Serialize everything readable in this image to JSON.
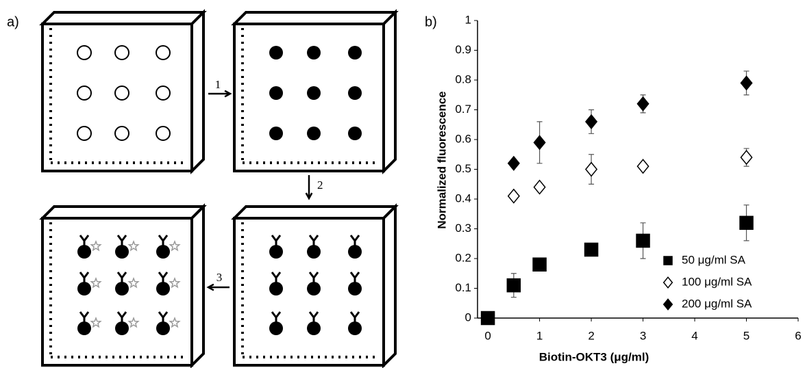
{
  "panel_labels": [
    "a)",
    "b)"
  ],
  "diagram": {
    "steps": [
      "1",
      "2",
      "3"
    ]
  },
  "chart_data": {
    "type": "scatter",
    "x_label": "Biotin-OKT3 (μg/ml)",
    "y_label": "Normalized fluorescence",
    "xlim": [
      -0.2,
      6
    ],
    "xticks": [
      0,
      1,
      2,
      3,
      4,
      5,
      6
    ],
    "ylim": [
      0,
      1
    ],
    "yticks": [
      0,
      0.1,
      0.2,
      0.3,
      0.4,
      0.5,
      0.6,
      0.7,
      0.8,
      0.9,
      1
    ],
    "grid": false,
    "legend": "lower right",
    "series": [
      {
        "name": "50 μg/ml SA",
        "color": "#000000",
        "marker": "square",
        "filled": true,
        "x": [
          0,
          0.5,
          1,
          2,
          3,
          5
        ],
        "values": [
          0,
          0.11,
          0.18,
          0.23,
          0.26,
          0.32
        ],
        "errors": [
          0,
          0.04,
          0.01,
          0.01,
          0.06,
          0.06
        ]
      },
      {
        "name": "100 μg/ml SA",
        "color": "#000000",
        "marker": "diamond",
        "filled": false,
        "x": [
          0.5,
          1,
          2,
          3,
          5
        ],
        "values": [
          0.41,
          0.44,
          0.5,
          0.51,
          0.54
        ],
        "errors": [
          0.01,
          0.01,
          0.05,
          0.01,
          0.03
        ]
      },
      {
        "name": "200 μg/ml SA",
        "color": "#000000",
        "marker": "diamond",
        "filled": true,
        "x": [
          0.5,
          1,
          2,
          3,
          5
        ],
        "values": [
          0.52,
          0.59,
          0.66,
          0.72,
          0.79
        ],
        "errors": [
          0.01,
          0.07,
          0.04,
          0.03,
          0.04
        ]
      }
    ]
  }
}
